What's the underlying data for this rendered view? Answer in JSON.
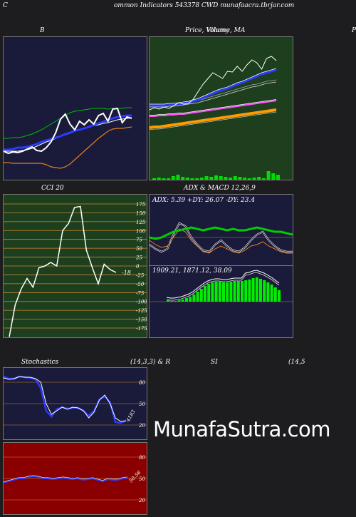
{
  "header": {
    "title": "ommon  Indicators 543378  CWD munafaacra.tbrjar.com",
    "left_edge": "C"
  },
  "panels": {
    "bollinger": {
      "title": "B"
    },
    "price": {
      "title": "Price,  Volume,  MA",
      "overlay": "Vllumy",
      "right_edge": "P"
    },
    "cci": {
      "title": "CCI 20",
      "last_label": "-18"
    },
    "adx": {
      "title": "ADX  & MACD 12,26,9",
      "values_text": "ADX: 5.39 +DY: 26.07 -DY: 23.4"
    },
    "macd": {
      "values_text": "1909.21,  1871.12,  38.09"
    },
    "stoch": {
      "title_left": "Stochastics",
      "title_right": "(14,3,3) & R",
      "last_label": "4183"
    },
    "rsi": {
      "title_left": "SI",
      "title_right": "(14,5",
      "last_label": "50.56"
    }
  },
  "watermark": "MunafaSutra.com",
  "colors": {
    "page_bg": "#1d1d1f",
    "navy_bg": "#1a1a3a",
    "green_bg": "#1d3f1d",
    "red_bg": "#8a0000",
    "grid": "#c98a2e"
  },
  "chart_data": [
    {
      "type": "line",
      "name": "bollinger",
      "series": [
        {
          "values": [
            40,
            40,
            40,
            40,
            41,
            42,
            44,
            47,
            50,
            53,
            55,
            58,
            61,
            63,
            65,
            68,
            70,
            72,
            74,
            76,
            77,
            79,
            80,
            82,
            84,
            85,
            86,
            87
          ]
        },
        {
          "values": [
            58,
            58,
            59,
            59,
            60,
            62,
            64,
            67,
            70,
            74,
            78,
            82,
            86,
            90,
            94,
            96,
            97,
            98,
            99,
            100,
            100,
            100,
            99,
            100,
            100,
            100,
            101,
            101
          ]
        },
        {
          "values": [
            24,
            24,
            23,
            23,
            23,
            23,
            23,
            23,
            23,
            21,
            18,
            17,
            16,
            18,
            22,
            28,
            34,
            40,
            46,
            52,
            58,
            63,
            68,
            71,
            72,
            72,
            73,
            74
          ]
        },
        {
          "values": [
            42,
            42,
            43,
            45,
            45,
            46,
            48,
            50,
            53,
            55,
            57,
            59,
            61,
            64,
            66,
            69,
            70,
            72,
            74,
            77,
            79,
            81,
            84,
            86,
            88,
            89,
            90,
            90
          ]
        },
        {
          "values": [
            40,
            37,
            39,
            38,
            40,
            43,
            46,
            41,
            40,
            45,
            53,
            66,
            85,
            92,
            78,
            70,
            82,
            77,
            84,
            78,
            90,
            93,
            82,
            99,
            100,
            80,
            88,
            86
          ]
        }
      ]
    },
    {
      "type": "line",
      "name": "price_volume_ma",
      "series": [
        {
          "values": [
            98,
            101,
            99,
            102,
            100,
            104,
            108,
            106,
            107,
            113,
            124,
            134,
            142,
            150,
            146,
            142,
            152,
            151,
            159,
            152,
            161,
            168,
            164,
            155,
            170,
            173,
            167
          ]
        },
        {
          "values": [
            104,
            104,
            104,
            104,
            105,
            105,
            106,
            107,
            108,
            110,
            112,
            115,
            118,
            121,
            124,
            126,
            128,
            131,
            134,
            136,
            139,
            142,
            145,
            148,
            150,
            152,
            154
          ]
        },
        {
          "values": [
            102,
            102,
            102,
            102,
            103,
            103,
            104,
            105,
            106,
            107,
            108,
            110,
            112,
            114,
            116,
            118,
            120,
            122,
            124,
            126,
            128,
            130,
            131,
            133,
            135,
            136,
            137
          ]
        },
        {
          "values": [
            89,
            89,
            90,
            90,
            91,
            91,
            92,
            92,
            93,
            94,
            95,
            96,
            97,
            98,
            99,
            100,
            101,
            102,
            103,
            104,
            105,
            106,
            107,
            108,
            109,
            110,
            111
          ]
        },
        {
          "values": [
            73,
            74,
            74,
            75,
            76,
            77,
            78,
            79,
            80,
            81,
            82,
            83,
            84,
            85,
            86,
            87,
            88,
            89,
            90,
            91,
            92,
            93,
            94,
            95,
            96,
            97,
            98
          ]
        },
        {
          "values": [
            2,
            3,
            2,
            2,
            5,
            7,
            4,
            3,
            2,
            2,
            3,
            5,
            4,
            6,
            5,
            4,
            3,
            5,
            4,
            3,
            2,
            3,
            4,
            2,
            12,
            9,
            7
          ]
        }
      ]
    },
    {
      "type": "line",
      "name": "cci",
      "y_ticks": [
        175,
        150,
        125,
        100,
        75,
        50,
        25,
        0,
        -25,
        -50,
        -75,
        -100,
        -125,
        -150,
        -175
      ],
      "ylim": [
        -185,
        185
      ],
      "series": [
        {
          "values": [
            -200,
            -110,
            -65,
            -35,
            -60,
            -5,
            0,
            10,
            0,
            100,
            120,
            165,
            168,
            45,
            -5,
            -50,
            5,
            -10,
            -18
          ]
        }
      ]
    },
    {
      "type": "line",
      "name": "adx",
      "series": [
        {
          "values": [
            20,
            19,
            20,
            22,
            24,
            25,
            26,
            27,
            26,
            25,
            26,
            27,
            26,
            25,
            26,
            25,
            25,
            26,
            27,
            26,
            25,
            24,
            24,
            23,
            22
          ]
        },
        {
          "values": [
            18,
            15,
            13,
            14,
            20,
            26,
            24,
            18,
            14,
            10,
            9,
            12,
            14,
            12,
            10,
            9,
            11,
            14,
            15,
            17,
            14,
            12,
            10,
            9,
            9
          ]
        },
        {
          "values": [
            15,
            12,
            10,
            12,
            22,
            30,
            28,
            20,
            15,
            11,
            10,
            15,
            18,
            14,
            11,
            10,
            13,
            18,
            22,
            24,
            18,
            14,
            11,
            10,
            10
          ]
        }
      ]
    },
    {
      "type": "bar",
      "name": "macd",
      "values": [
        2,
        1,
        1,
        2,
        3,
        5,
        7,
        10,
        14,
        18,
        22,
        25,
        27,
        28,
        28,
        27,
        27,
        28,
        29,
        29,
        29,
        30,
        31,
        33,
        34,
        32,
        30,
        27,
        24,
        20,
        16
      ]
    },
    {
      "type": "line",
      "name": "stochastics",
      "y_ticks": [
        80,
        50,
        20
      ],
      "ylim": [
        0,
        100
      ],
      "series": [
        {
          "values": [
            88,
            85,
            85,
            88,
            87,
            86,
            84,
            72,
            40,
            32,
            42,
            45,
            43,
            44,
            44,
            40,
            33,
            40,
            56,
            60,
            52,
            24,
            23,
            26
          ]
        },
        {
          "values": [
            86,
            84,
            85,
            88,
            87,
            87,
            85,
            80,
            50,
            35,
            40,
            45,
            42,
            45,
            44,
            40,
            30,
            38,
            55,
            62,
            50,
            30,
            25,
            26
          ]
        }
      ]
    },
    {
      "type": "line",
      "name": "rsi",
      "y_ticks": [
        80,
        50,
        20
      ],
      "ylim": [
        0,
        100
      ],
      "series": [
        {
          "values": [
            44,
            46,
            48,
            50,
            50,
            52,
            53,
            52,
            50,
            50,
            49,
            50,
            51,
            50,
            49,
            50,
            48,
            49,
            50,
            48,
            46,
            49,
            48,
            48,
            50,
            51
          ]
        }
      ]
    }
  ]
}
